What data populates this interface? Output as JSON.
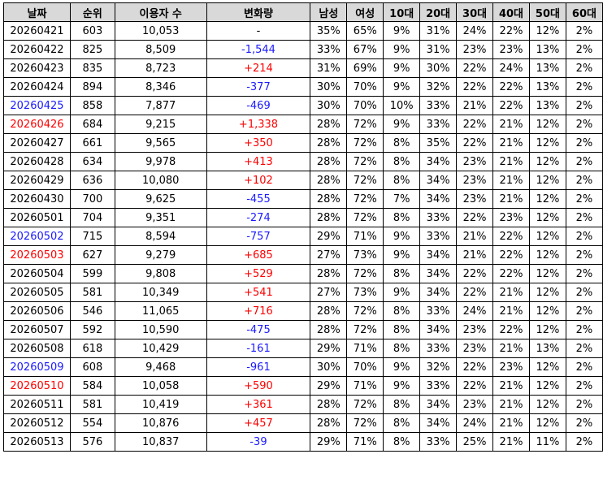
{
  "headers": [
    "날짜",
    "순위",
    "이용자 수",
    "변화량",
    "남성",
    "여성",
    "10대",
    "20대",
    "30대",
    "40대",
    "50대",
    "60대"
  ],
  "rows": [
    {
      "date": "20260421",
      "rank": "603",
      "users": "10,053",
      "change": "-",
      "male": "35%",
      "female": "65%",
      "a10": "9%",
      "a20": "31%",
      "a30": "24%",
      "a40": "22%",
      "a50": "12%",
      "a60": "2%",
      "day": "wk",
      "dir": "neutral"
    },
    {
      "date": "20260422",
      "rank": "825",
      "users": "8,509",
      "change": "-1,544",
      "male": "33%",
      "female": "67%",
      "a10": "9%",
      "a20": "31%",
      "a30": "23%",
      "a40": "23%",
      "a50": "13%",
      "a60": "2%",
      "day": "wk",
      "dir": "down"
    },
    {
      "date": "20260423",
      "rank": "835",
      "users": "8,723",
      "change": "+214",
      "male": "31%",
      "female": "69%",
      "a10": "9%",
      "a20": "30%",
      "a30": "22%",
      "a40": "24%",
      "a50": "13%",
      "a60": "2%",
      "day": "wk",
      "dir": "up"
    },
    {
      "date": "20260424",
      "rank": "894",
      "users": "8,346",
      "change": "-377",
      "male": "30%",
      "female": "70%",
      "a10": "9%",
      "a20": "32%",
      "a30": "22%",
      "a40": "22%",
      "a50": "13%",
      "a60": "2%",
      "day": "wk",
      "dir": "down"
    },
    {
      "date": "20260425",
      "rank": "858",
      "users": "7,877",
      "change": "-469",
      "male": "30%",
      "female": "70%",
      "a10": "10%",
      "a20": "33%",
      "a30": "21%",
      "a40": "22%",
      "a50": "13%",
      "a60": "2%",
      "day": "sat",
      "dir": "down"
    },
    {
      "date": "20260426",
      "rank": "684",
      "users": "9,215",
      "change": "+1,338",
      "male": "28%",
      "female": "72%",
      "a10": "9%",
      "a20": "33%",
      "a30": "22%",
      "a40": "21%",
      "a50": "12%",
      "a60": "2%",
      "day": "sun",
      "dir": "up"
    },
    {
      "date": "20260427",
      "rank": "661",
      "users": "9,565",
      "change": "+350",
      "male": "28%",
      "female": "72%",
      "a10": "8%",
      "a20": "35%",
      "a30": "22%",
      "a40": "21%",
      "a50": "12%",
      "a60": "2%",
      "day": "wk",
      "dir": "up"
    },
    {
      "date": "20260428",
      "rank": "634",
      "users": "9,978",
      "change": "+413",
      "male": "28%",
      "female": "72%",
      "a10": "8%",
      "a20": "34%",
      "a30": "23%",
      "a40": "21%",
      "a50": "12%",
      "a60": "2%",
      "day": "wk",
      "dir": "up"
    },
    {
      "date": "20260429",
      "rank": "636",
      "users": "10,080",
      "change": "+102",
      "male": "28%",
      "female": "72%",
      "a10": "8%",
      "a20": "34%",
      "a30": "23%",
      "a40": "21%",
      "a50": "12%",
      "a60": "2%",
      "day": "wk",
      "dir": "up"
    },
    {
      "date": "20260430",
      "rank": "700",
      "users": "9,625",
      "change": "-455",
      "male": "28%",
      "female": "72%",
      "a10": "7%",
      "a20": "34%",
      "a30": "23%",
      "a40": "21%",
      "a50": "12%",
      "a60": "2%",
      "day": "wk",
      "dir": "down"
    },
    {
      "date": "20260501",
      "rank": "704",
      "users": "9,351",
      "change": "-274",
      "male": "28%",
      "female": "72%",
      "a10": "8%",
      "a20": "33%",
      "a30": "22%",
      "a40": "23%",
      "a50": "12%",
      "a60": "2%",
      "day": "wk",
      "dir": "down"
    },
    {
      "date": "20260502",
      "rank": "715",
      "users": "8,594",
      "change": "-757",
      "male": "29%",
      "female": "71%",
      "a10": "9%",
      "a20": "33%",
      "a30": "21%",
      "a40": "22%",
      "a50": "12%",
      "a60": "2%",
      "day": "sat",
      "dir": "down"
    },
    {
      "date": "20260503",
      "rank": "627",
      "users": "9,279",
      "change": "+685",
      "male": "27%",
      "female": "73%",
      "a10": "9%",
      "a20": "34%",
      "a30": "21%",
      "a40": "22%",
      "a50": "12%",
      "a60": "2%",
      "day": "sun",
      "dir": "up"
    },
    {
      "date": "20260504",
      "rank": "599",
      "users": "9,808",
      "change": "+529",
      "male": "28%",
      "female": "72%",
      "a10": "8%",
      "a20": "34%",
      "a30": "22%",
      "a40": "22%",
      "a50": "12%",
      "a60": "2%",
      "day": "wk",
      "dir": "up"
    },
    {
      "date": "20260505",
      "rank": "581",
      "users": "10,349",
      "change": "+541",
      "male": "27%",
      "female": "73%",
      "a10": "9%",
      "a20": "34%",
      "a30": "22%",
      "a40": "21%",
      "a50": "12%",
      "a60": "2%",
      "day": "wk",
      "dir": "up"
    },
    {
      "date": "20260506",
      "rank": "546",
      "users": "11,065",
      "change": "+716",
      "male": "28%",
      "female": "72%",
      "a10": "8%",
      "a20": "33%",
      "a30": "24%",
      "a40": "21%",
      "a50": "12%",
      "a60": "2%",
      "day": "wk",
      "dir": "up"
    },
    {
      "date": "20260507",
      "rank": "592",
      "users": "10,590",
      "change": "-475",
      "male": "28%",
      "female": "72%",
      "a10": "8%",
      "a20": "34%",
      "a30": "23%",
      "a40": "22%",
      "a50": "12%",
      "a60": "2%",
      "day": "wk",
      "dir": "down"
    },
    {
      "date": "20260508",
      "rank": "618",
      "users": "10,429",
      "change": "-161",
      "male": "29%",
      "female": "71%",
      "a10": "8%",
      "a20": "33%",
      "a30": "23%",
      "a40": "21%",
      "a50": "13%",
      "a60": "2%",
      "day": "wk",
      "dir": "down"
    },
    {
      "date": "20260509",
      "rank": "608",
      "users": "9,468",
      "change": "-961",
      "male": "30%",
      "female": "70%",
      "a10": "9%",
      "a20": "32%",
      "a30": "22%",
      "a40": "23%",
      "a50": "12%",
      "a60": "2%",
      "day": "sat",
      "dir": "down"
    },
    {
      "date": "20260510",
      "rank": "584",
      "users": "10,058",
      "change": "+590",
      "male": "29%",
      "female": "71%",
      "a10": "9%",
      "a20": "33%",
      "a30": "22%",
      "a40": "21%",
      "a50": "12%",
      "a60": "2%",
      "day": "sun",
      "dir": "up"
    },
    {
      "date": "20260511",
      "rank": "581",
      "users": "10,419",
      "change": "+361",
      "male": "28%",
      "female": "72%",
      "a10": "8%",
      "a20": "34%",
      "a30": "23%",
      "a40": "21%",
      "a50": "12%",
      "a60": "2%",
      "day": "wk",
      "dir": "up"
    },
    {
      "date": "20260512",
      "rank": "554",
      "users": "10,876",
      "change": "+457",
      "male": "28%",
      "female": "72%",
      "a10": "8%",
      "a20": "34%",
      "a30": "24%",
      "a40": "21%",
      "a50": "12%",
      "a60": "2%",
      "day": "wk",
      "dir": "up"
    },
    {
      "date": "20260513",
      "rank": "576",
      "users": "10,837",
      "change": "-39",
      "male": "29%",
      "female": "71%",
      "a10": "8%",
      "a20": "33%",
      "a30": "25%",
      "a40": "21%",
      "a50": "11%",
      "a60": "2%",
      "day": "wk",
      "dir": "down"
    }
  ]
}
